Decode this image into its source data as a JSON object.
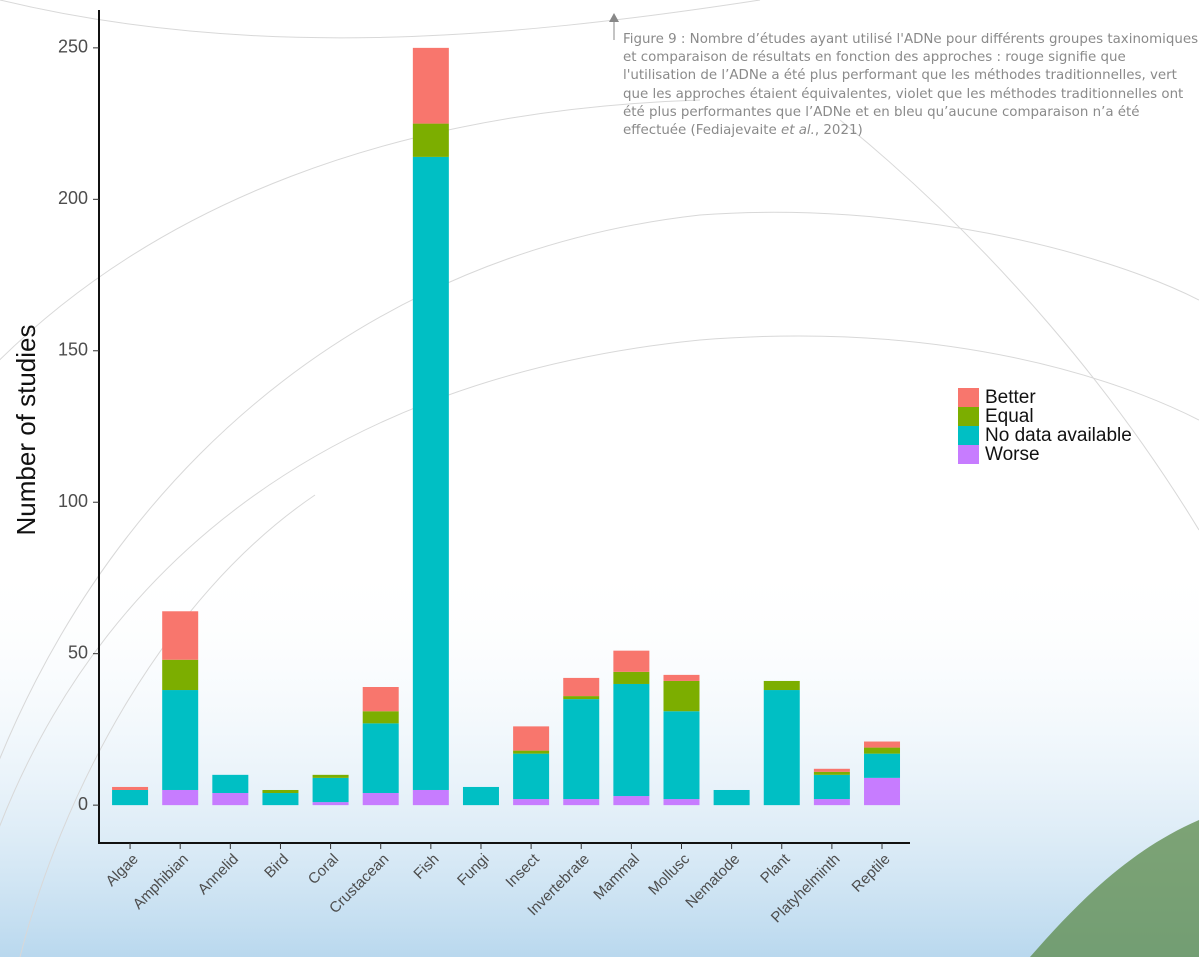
{
  "chart_data": {
    "type": "stacked_bar",
    "caption_parts": [
      "Figure 9 : Nombre d’études ayant utilisé l'ADNe pour différents groupes taxinomiques et comparaison de résultats en fonction des approches : rouge signifie que l'utilisation de l’ADNe a été plus performant que les méthodes traditionnelles, vert que les approches étaient équivalentes, violet que les méthodes traditionnelles ont été plus performantes que l’ADNe et en bleu qu’aucune comparaison n’a été effectuée (Fediajevaite ",
      "et al.",
      ", 2021)"
    ],
    "y_label": "Number of studies",
    "categories": [
      "Algae",
      "Amphibian",
      "Annelid",
      "Bird",
      "Coral",
      "Crustacean",
      "Fish",
      "Fungi",
      "Insect",
      "Invertebrate",
      "Mammal",
      "Mollusc",
      "Nematode",
      "Plant",
      "Platyhelminth",
      "Reptile"
    ],
    "series": [
      {
        "name": "Better",
        "color": "#F8766D",
        "values": [
          1,
          16,
          0,
          0,
          0,
          8,
          25,
          0,
          8,
          6,
          7,
          2,
          0,
          0,
          1,
          2
        ]
      },
      {
        "name": "Equal",
        "color": "#7CAE00",
        "values": [
          0,
          10,
          0,
          1,
          1,
          4,
          11,
          0,
          1,
          1,
          4,
          10,
          0,
          3,
          1,
          2
        ]
      },
      {
        "name": "No data available",
        "color": "#00BFC4",
        "values": [
          5,
          33,
          6,
          4,
          8,
          23,
          209,
          6,
          15,
          33,
          37,
          29,
          5,
          38,
          8,
          8
        ]
      },
      {
        "name": "Worse",
        "color": "#C77CFF",
        "values": [
          0,
          5,
          4,
          0,
          1,
          4,
          5,
          0,
          2,
          2,
          3,
          2,
          0,
          0,
          2,
          9
        ]
      }
    ],
    "ylim": [
      -12.5,
      262.5
    ],
    "yticks": [
      0,
      50,
      100,
      150,
      200,
      250
    ],
    "legend": "right"
  }
}
